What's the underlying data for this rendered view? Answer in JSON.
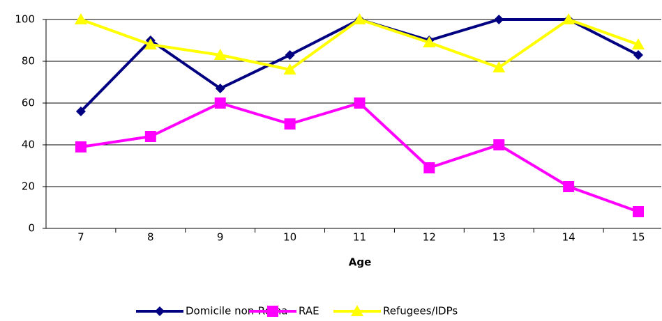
{
  "chart_data": {
    "type": "line",
    "x_label": "Age",
    "categories": [
      "7",
      "8",
      "9",
      "10",
      "11",
      "12",
      "13",
      "14",
      "15"
    ],
    "series": [
      {
        "name": "Domicile non-Roma",
        "color": "#000080",
        "marker": "diamond",
        "values": [
          56,
          90,
          67,
          83,
          100,
          90,
          100,
          100,
          83
        ]
      },
      {
        "name": "RAE",
        "color": "#ff00ff",
        "marker": "square",
        "values": [
          39,
          44,
          60,
          50,
          60,
          29,
          40,
          20,
          8
        ]
      },
      {
        "name": "Refugees/IDPs",
        "color": "#ffff00",
        "marker": "triangle",
        "values": [
          100,
          88,
          83,
          76,
          100,
          89,
          77,
          100,
          88
        ]
      }
    ],
    "ylim": [
      0,
      100
    ],
    "yticks": [
      0,
      20,
      40,
      60,
      80,
      100
    ],
    "grid": true,
    "legend": "bottom"
  }
}
